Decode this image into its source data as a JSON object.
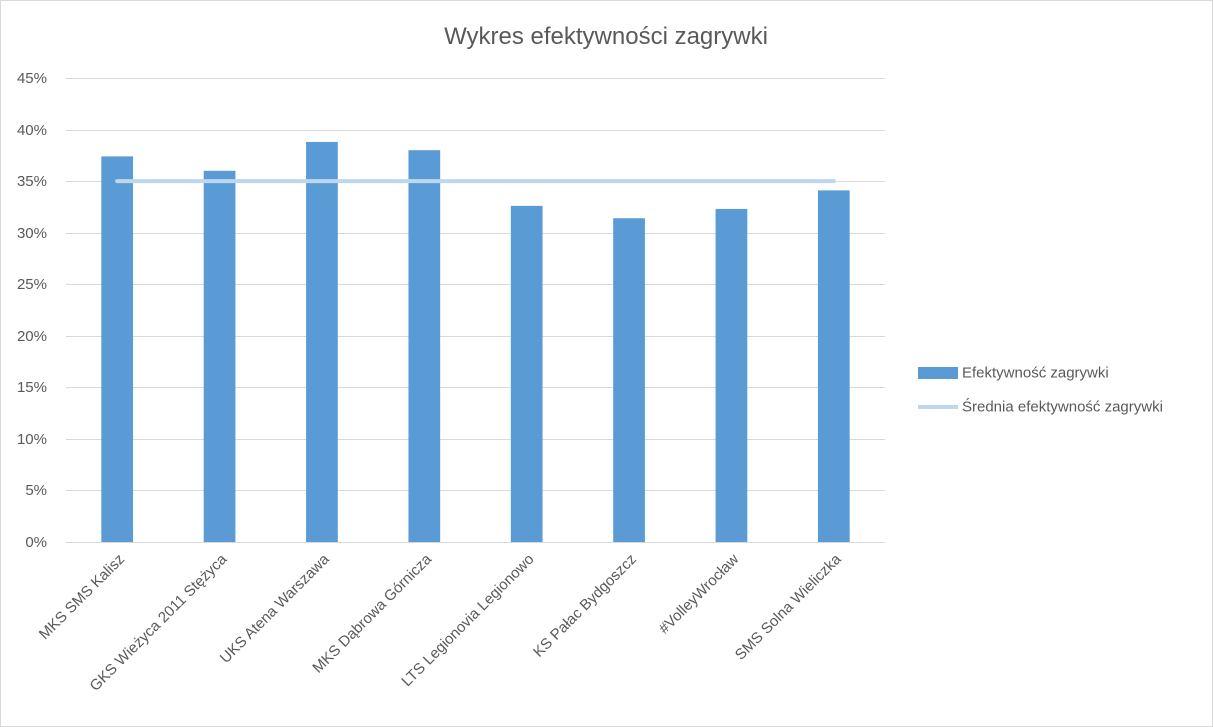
{
  "chart_data": {
    "type": "bar",
    "title": "Wykres efektywności zagrywki",
    "categories": [
      "MKS SMS Kalisz",
      "GKS Wieżyca 2011 Stężyca",
      "UKS Atena Warszawa",
      "MKS Dąbrowa Górnicza",
      "LTS Legionovia Legionowo",
      "KS Pałac Bydgoszcz",
      "#VolleyWrocław",
      "SMS Solna Wieliczka"
    ],
    "series": [
      {
        "name": "Efektywność zagrywki",
        "type": "bar",
        "color": "#5B9BD5",
        "values": [
          37.4,
          36.0,
          38.8,
          38.0,
          32.6,
          31.4,
          32.3,
          34.1
        ]
      },
      {
        "name": "Średnia efektywność zagrywki",
        "type": "line",
        "color": "#BDD7EE",
        "values": [
          35.0,
          35.0,
          35.0,
          35.0,
          35.0,
          35.0,
          35.0,
          35.0
        ]
      }
    ],
    "ylim": [
      0,
      45
    ],
    "yticks": [
      0,
      5,
      10,
      15,
      20,
      25,
      30,
      35,
      40,
      45
    ],
    "ytick_labels": [
      "0%",
      "5%",
      "10%",
      "15%",
      "20%",
      "25%",
      "30%",
      "35%",
      "40%",
      "45%"
    ],
    "xlabel": "",
    "ylabel": "",
    "grid": true,
    "grid_color": "#D9D9D9",
    "text_color": "#595959",
    "legend_position": "right"
  }
}
